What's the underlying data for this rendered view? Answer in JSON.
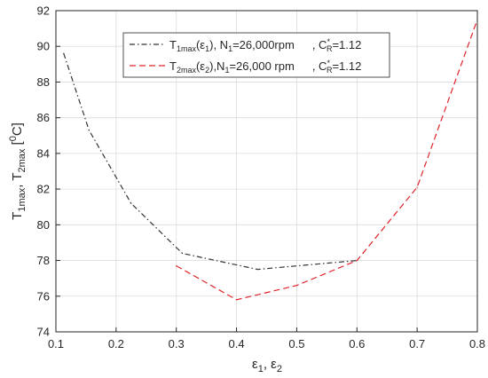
{
  "chart_data": {
    "type": "line",
    "xlabel": "ε1, ε2",
    "ylabel": "T1max, T2max [0C]",
    "xlim": [
      0.1,
      0.8
    ],
    "ylim": [
      74,
      92
    ],
    "x_ticks": [
      "0.1",
      "0.2",
      "0.3",
      "0.4",
      "0.5",
      "0.6",
      "0.7",
      "0.8"
    ],
    "y_ticks": [
      "74",
      "76",
      "78",
      "80",
      "82",
      "84",
      "86",
      "88",
      "90",
      "92"
    ],
    "grid": true,
    "legend_position": "top-center",
    "series": [
      {
        "name": "T1max(ε1), N1=26,000rpm , C*R=1.12",
        "style": "dash-dot",
        "color": "#333333",
        "x": [
          0.113,
          0.155,
          0.225,
          0.31,
          0.435,
          0.6
        ],
        "y": [
          89.6,
          85.3,
          81.2,
          78.4,
          77.5,
          78.0
        ]
      },
      {
        "name": "T2max(ε2),N1=26,000 rpm , C*R=1.12",
        "style": "dashed",
        "color": "#e0242a",
        "x": [
          0.3,
          0.4,
          0.5,
          0.6,
          0.7,
          0.8
        ],
        "y": [
          77.7,
          75.8,
          76.6,
          78.0,
          82.1,
          91.5
        ]
      }
    ]
  }
}
